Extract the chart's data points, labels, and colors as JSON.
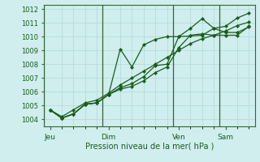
{
  "xlabel": "Pression niveau de la mer( hPa )",
  "background_color": "#d0eeee",
  "grid_color": "#b0d8d8",
  "line_color": "#1a5c1a",
  "ylim": [
    1003.5,
    1012.3
  ],
  "yticks": [
    1004,
    1005,
    1006,
    1007,
    1008,
    1009,
    1010,
    1011,
    1012
  ],
  "xtick_labels": [
    "Jeu",
    "Dim",
    "Ven",
    "Sam"
  ],
  "lines": [
    {
      "x": [
        0,
        1,
        2,
        3,
        4,
        5,
        6,
        7,
        8,
        9,
        10,
        11,
        12,
        13,
        14,
        15,
        16,
        17
      ],
      "y": [
        1004.7,
        1004.1,
        1004.4,
        1005.1,
        1005.2,
        1005.8,
        1009.1,
        1007.8,
        1009.4,
        1009.8,
        1010.0,
        1010.0,
        1010.05,
        1010.1,
        1010.6,
        1010.75,
        1011.35,
        1011.7
      ]
    },
    {
      "x": [
        0,
        1,
        2,
        3,
        4,
        5,
        6,
        7,
        8,
        9,
        10,
        11,
        12,
        13,
        14,
        15,
        16,
        17
      ],
      "y": [
        1004.7,
        1004.1,
        1004.4,
        1005.1,
        1005.2,
        1005.8,
        1006.3,
        1006.6,
        1007.1,
        1007.9,
        1008.0,
        1010.0,
        1010.6,
        1011.3,
        1010.6,
        1010.3,
        1010.3,
        1010.7
      ]
    },
    {
      "x": [
        0,
        1,
        2,
        3,
        4,
        5,
        6,
        7,
        8,
        9,
        10,
        11,
        12,
        13,
        14,
        15,
        16,
        17
      ],
      "y": [
        1004.7,
        1004.1,
        1004.4,
        1005.1,
        1005.2,
        1005.8,
        1006.2,
        1006.4,
        1006.8,
        1007.4,
        1007.8,
        1009.2,
        1010.1,
        1010.2,
        1010.1,
        1010.1,
        1010.1,
        1010.75
      ]
    },
    {
      "x": [
        0,
        1,
        2,
        3,
        4,
        5,
        6,
        7,
        8,
        9,
        10,
        11,
        12,
        13,
        14,
        15,
        16,
        17
      ],
      "y": [
        1004.7,
        1004.2,
        1004.7,
        1005.2,
        1005.4,
        1005.9,
        1006.5,
        1007.0,
        1007.5,
        1008.0,
        1008.5,
        1009.0,
        1009.5,
        1009.85,
        1010.1,
        1010.4,
        1010.8,
        1011.05
      ]
    }
  ],
  "n_points": 18,
  "jeu_idx": 0,
  "dim_idx": 5,
  "ven_idx": 11,
  "sam_idx": 15
}
